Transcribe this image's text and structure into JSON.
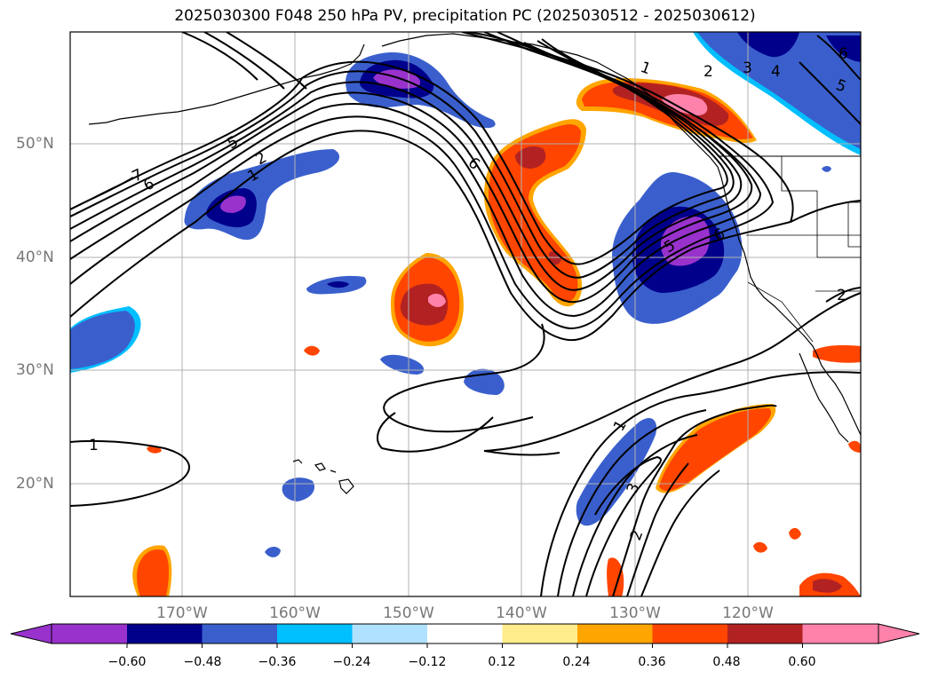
{
  "title": "2025030300 F048 250 hPa PV, precipitation PC (2025030512 - 2025030612)",
  "axes": {
    "lat_labels": [
      "50°N",
      "40°N",
      "30°N",
      "20°N"
    ],
    "lon_labels": [
      "170°W",
      "160°W",
      "150°W",
      "140°W",
      "130°W",
      "120°W"
    ]
  },
  "colorbar": {
    "colors": [
      "#9932cc",
      "#00008b",
      "#3a5fcd",
      "#00bfff",
      "#b0e2ff",
      "#ffffff",
      "#ffec8b",
      "#ffa500",
      "#ff4500",
      "#b22222",
      "#ff82ab"
    ],
    "tick_labels": [
      "−0.60",
      "−0.48",
      "−0.36",
      "−0.24",
      "−0.12",
      "0.12",
      "0.24",
      "0.36",
      "0.48",
      "0.60"
    ]
  },
  "contour_labels": [
    "7",
    "6",
    "5",
    "2",
    "1",
    "1",
    "2",
    "3",
    "4",
    "5",
    "6",
    "1",
    "6",
    "5",
    "6",
    "2",
    "1",
    "3",
    "2"
  ],
  "colors": {
    "contour": "#000000",
    "coast": "#000000",
    "grid": "#b0b0b0"
  }
}
